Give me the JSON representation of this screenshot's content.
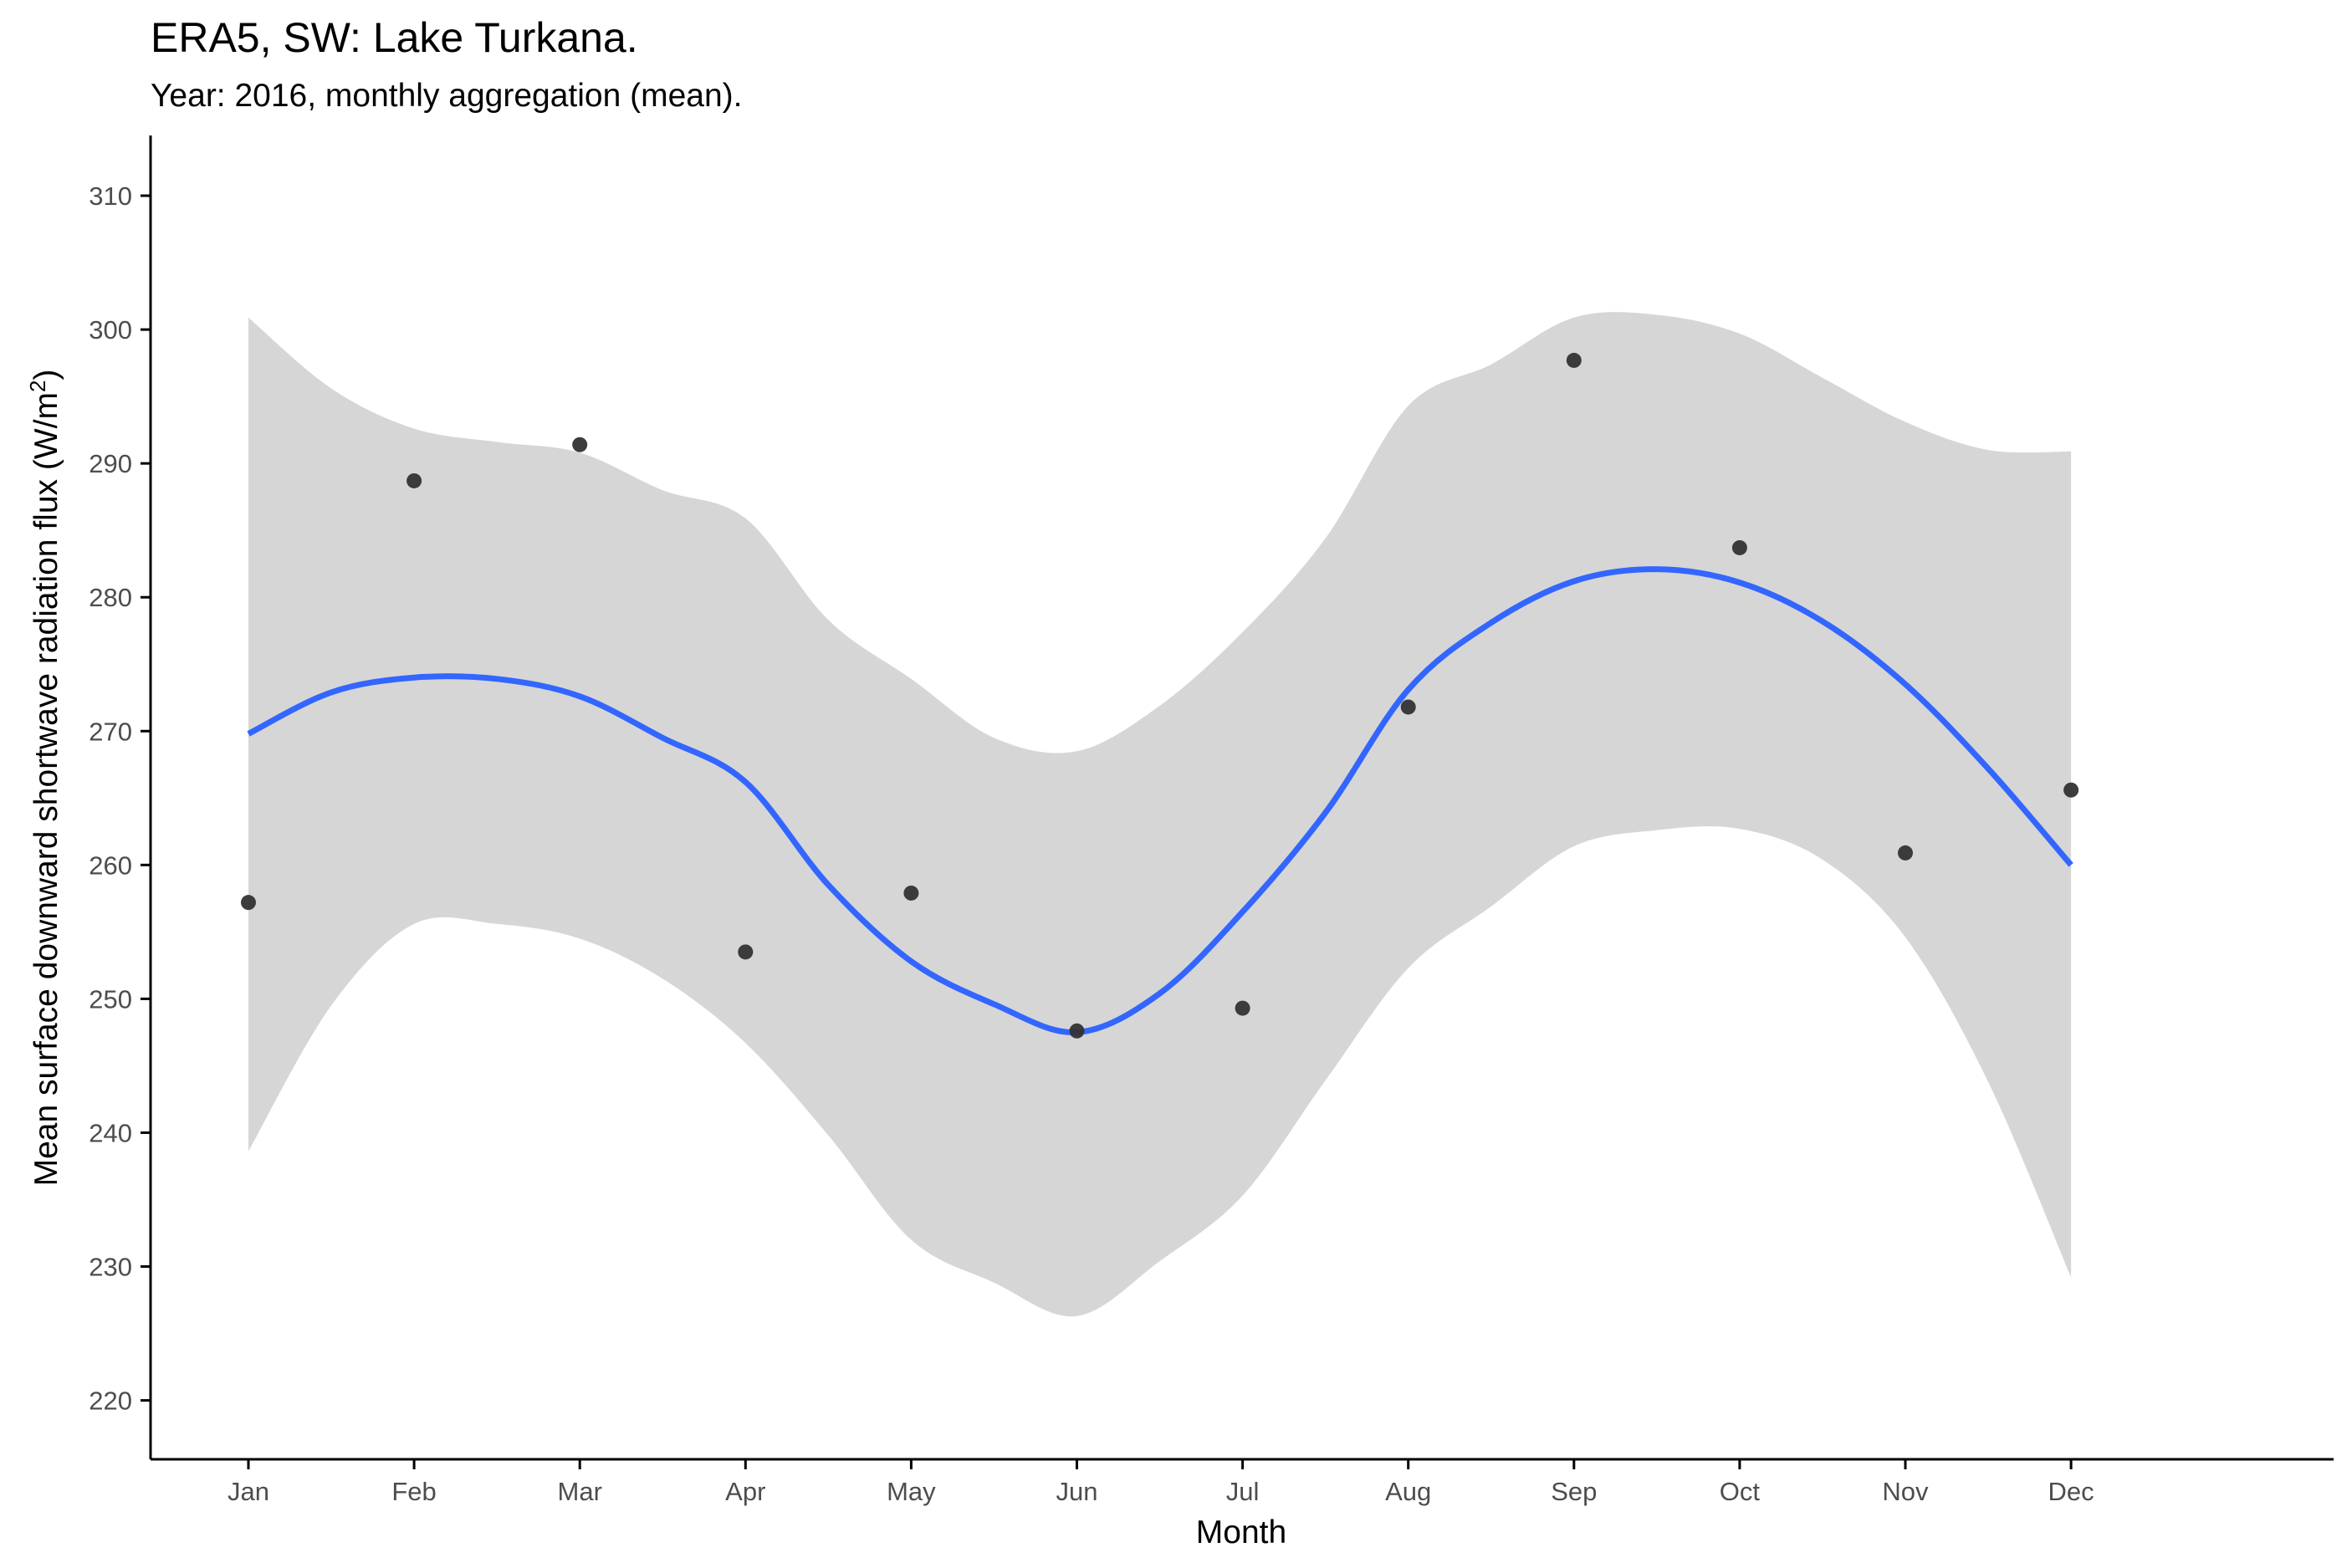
{
  "chart_data": {
    "type": "scatter",
    "title": "ERA5, SW: Lake Turkana.",
    "subtitle": "Year: 2016, monthly aggregation (mean).",
    "xlabel": "Month",
    "ylabel": "Mean surface downward shortwave radiation flux (W/m²)",
    "ylabel_main": "Mean surface downward shortwave radiation flux (W/m",
    "ylabel_sup": "2",
    "ylabel_end": ")",
    "categories": [
      "Jan",
      "Feb",
      "Mar",
      "Apr",
      "May",
      "Jun",
      "Jul",
      "Aug",
      "Sep",
      "Oct",
      "Nov",
      "Dec"
    ],
    "yticks": [
      220,
      230,
      240,
      250,
      260,
      270,
      280,
      290,
      300,
      310
    ],
    "ylim": [
      215.6,
      314.5
    ],
    "points": [
      {
        "x": "Jan",
        "y": 257.2
      },
      {
        "x": "Feb",
        "y": 288.7
      },
      {
        "x": "Mar",
        "y": 291.4
      },
      {
        "x": "Apr",
        "y": 253.5
      },
      {
        "x": "May",
        "y": 257.9
      },
      {
        "x": "Jun",
        "y": 247.6
      },
      {
        "x": "Jul",
        "y": 249.3
      },
      {
        "x": "Aug",
        "y": 271.8
      },
      {
        "x": "Sep",
        "y": 297.7
      },
      {
        "x": "Oct",
        "y": 283.7
      },
      {
        "x": "Nov",
        "y": 260.9
      },
      {
        "x": "Dec",
        "y": 265.6
      }
    ],
    "smooth": {
      "month": [
        1,
        1.5,
        2,
        2.5,
        3,
        3.5,
        4,
        4.5,
        5,
        5.5,
        6,
        6.5,
        7,
        7.5,
        8,
        8.5,
        9,
        9.5,
        10,
        10.5,
        11,
        11.5,
        12
      ],
      "fit": [
        269.8,
        272.9,
        274.0,
        273.9,
        272.6,
        269.5,
        266.2,
        258.5,
        252.8,
        249.6,
        247.5,
        250.4,
        256.5,
        263.9,
        273.1,
        278.1,
        281.2,
        282.1,
        281.1,
        278.2,
        273.5,
        267.2,
        260.0
      ],
      "lower": [
        238.6,
        249.5,
        255.6,
        255.6,
        254.5,
        251.5,
        246.7,
        239.8,
        232.0,
        228.8,
        226.3,
        230.4,
        235.3,
        243.9,
        252.3,
        256.9,
        261.4,
        262.6,
        262.7,
        260.4,
        254.6,
        243.8,
        229.2
      ],
      "upper": [
        300.9,
        295.6,
        292.6,
        291.6,
        290.8,
        288.0,
        285.9,
        278.3,
        273.9,
        269.5,
        268.5,
        271.9,
        277.4,
        284.4,
        294.3,
        297.4,
        300.9,
        301.1,
        299.7,
        296.4,
        293.1,
        291.0,
        290.9
      ]
    },
    "colors": {
      "line": "#3366ff",
      "ribbon": "#d6d6d6",
      "point": "#333333",
      "axis": "#000000",
      "tick_text": "#4d4d4d"
    },
    "grid": false,
    "legend": "none"
  }
}
